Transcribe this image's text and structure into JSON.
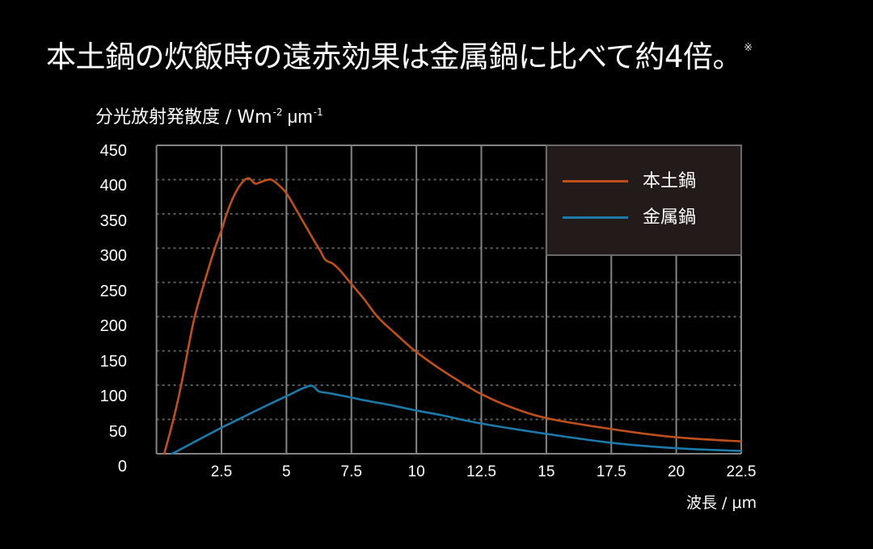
{
  "header": {
    "title": "本土鍋の炊飯時の遠赤効果は金属鍋に比べて約4倍。",
    "footnote_mark": "※"
  },
  "axis_title": {
    "y_text": "分光放射発散度 / Wm",
    "y_sup1": "-2",
    "y_unit2": " μm",
    "y_sup2": "-1",
    "x_text": "波長 / μm"
  },
  "colors": {
    "background": "#000000",
    "grid_solid": "#858585",
    "grid_dashed": "#5e5e5e",
    "legend_bg": "#231b19",
    "series_clay": "#c0501a",
    "series_metal": "#1a7aaa"
  },
  "chart_data": {
    "type": "line",
    "title": "本土鍋の炊飯時の遠赤効果は金属鍋に比べて約4倍。",
    "xlabel": "波長 / μm",
    "ylabel": "分光放射発散度 / Wm-2 μm-1",
    "xlim": [
      0,
      22.5
    ],
    "ylim": [
      0,
      450
    ],
    "x_ticks": [
      "2.5",
      "5",
      "7.5",
      "10",
      "12.5",
      "15",
      "17.5",
      "20",
      "22.5"
    ],
    "y_ticks": [
      "0",
      "50",
      "100",
      "150",
      "200",
      "250",
      "300",
      "350",
      "400",
      "450"
    ],
    "grid": {
      "vertical": "solid",
      "horizontal": "dashed"
    },
    "legend": {
      "position": "upper right"
    },
    "series": [
      {
        "name": "本土鍋",
        "color": "#c0501a",
        "x": [
          0.3,
          0.65,
          0.95,
          1.2,
          1.47,
          1.84,
          2.25,
          2.5,
          2.7,
          3.0,
          3.3,
          3.55,
          3.8,
          4.05,
          4.4,
          4.7,
          5.0,
          5.5,
          6.0,
          6.3,
          6.5,
          6.8,
          7.05,
          7.45,
          8.0,
          8.5,
          9.2,
          9.95,
          10.9,
          11.9,
          12.5,
          13.5,
          15,
          17.5,
          20,
          22.5
        ],
        "y": [
          0,
          50,
          100,
          150,
          200,
          250,
          300,
          326,
          350,
          378,
          396,
          402,
          394,
          397,
          400,
          392,
          380,
          348,
          315,
          296,
          283,
          277,
          268,
          250,
          225,
          200,
          175,
          150,
          124,
          100,
          87,
          70,
          52,
          36,
          24,
          18
        ]
      },
      {
        "name": "金属鍋",
        "color": "#1a7aaa",
        "x": [
          0.6,
          1.5,
          2.5,
          3.2,
          4.0,
          5.0,
          5.9,
          6.25,
          6.7,
          7.5,
          8.0,
          9.0,
          10,
          11,
          12.5,
          15,
          17.5,
          20,
          22.5
        ],
        "y": [
          0,
          18,
          38,
          51,
          66,
          84,
          99,
          91,
          88,
          82,
          78,
          71,
          63,
          56,
          44,
          29,
          16,
          8,
          4
        ]
      }
    ]
  }
}
